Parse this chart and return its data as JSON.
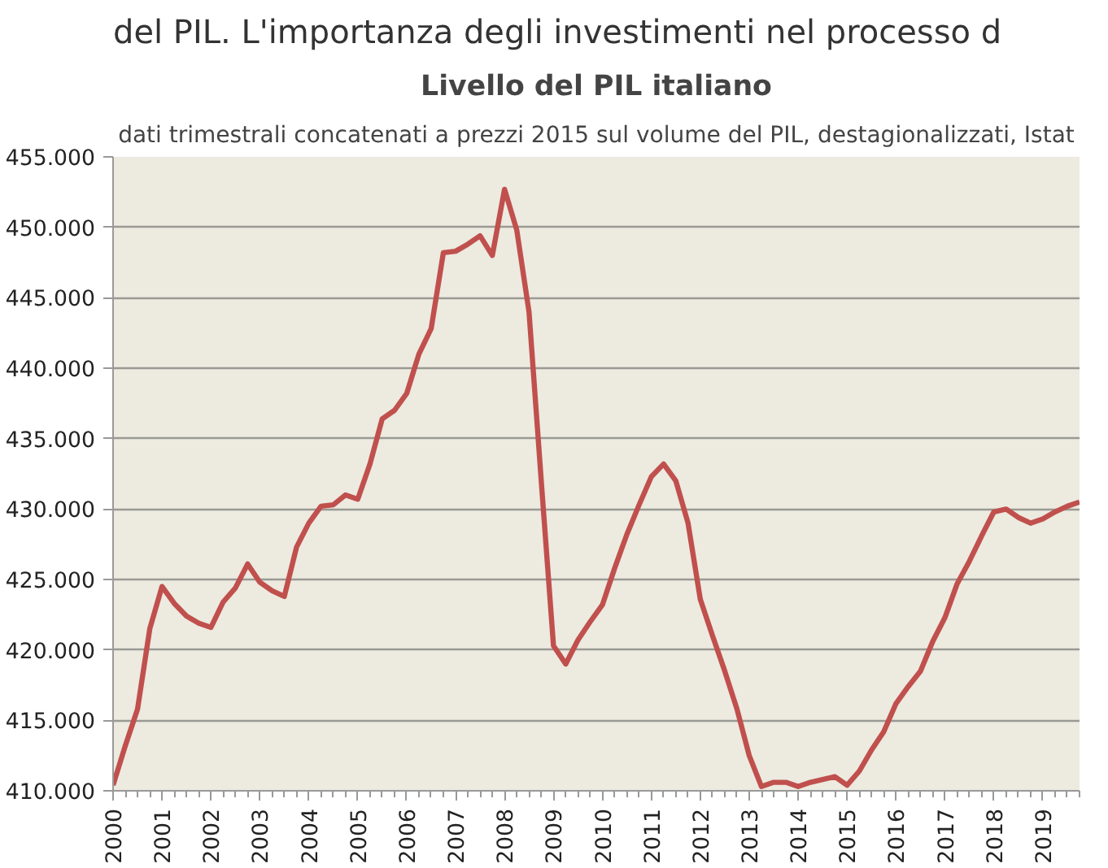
{
  "chart_data": {
    "type": "line",
    "title": "Livello del PIL italiano",
    "subtitle": "dati trimestrali concatenati a prezzi 2015 sul volume del PIL, destagionalizzati, Istat",
    "annotations": [
      "del PIL. L'importanza degli investimenti nel processo d"
    ],
    "x": [
      2000,
      2000.25,
      2000.5,
      2000.75,
      2001,
      2001.25,
      2001.5,
      2001.75,
      2002,
      2002.25,
      2002.5,
      2002.75,
      2003,
      2003.25,
      2003.5,
      2003.75,
      2004,
      2004.25,
      2004.5,
      2004.75,
      2005,
      2005.25,
      2005.5,
      2005.75,
      2006,
      2006.25,
      2006.5,
      2006.75,
      2007,
      2007.25,
      2007.5,
      2007.75,
      2008,
      2008.25,
      2008.5,
      2008.75,
      2009,
      2009.25,
      2009.5,
      2009.75,
      2010,
      2010.25,
      2010.5,
      2010.75,
      2011,
      2011.25,
      2011.5,
      2011.75,
      2012,
      2012.25,
      2012.5,
      2012.75,
      2013,
      2013.25,
      2013.5,
      2013.75,
      2014,
      2014.25,
      2014.5,
      2014.75,
      2015,
      2015.25,
      2015.5,
      2015.75,
      2016,
      2016.25,
      2016.5,
      2016.75,
      2017,
      2017.25,
      2017.5,
      2017.75,
      2018,
      2018.25,
      2018.5,
      2018.75,
      2019,
      2019.25,
      2019.5,
      2019.75
    ],
    "series": [
      {
        "color": "#c0504d",
        "values": [
          410400,
          413200,
          415800,
          421500,
          424500,
          423300,
          422400,
          421900,
          421600,
          423400,
          424400,
          426100,
          424800,
          424200,
          423800,
          427300,
          429000,
          430200,
          430300,
          431000,
          430700,
          433200,
          436400,
          437000,
          438200,
          441000,
          442800,
          448200,
          448300,
          448800,
          449400,
          448000,
          452700,
          449800,
          444000,
          432000,
          420300,
          419000,
          420700,
          422000,
          423200,
          425800,
          428200,
          430300,
          432300,
          433200,
          432000,
          429000,
          423600,
          421000,
          418500,
          415800,
          412500,
          410300,
          410600,
          410600,
          410300,
          410600,
          410800,
          411000,
          410400,
          411400,
          412900,
          414200,
          416200,
          417400,
          418500,
          420600,
          422300,
          424700,
          426300,
          428100,
          429800,
          430000,
          429400,
          429000,
          429300,
          429800,
          430200,
          430500
        ]
      }
    ],
    "xlim": [
      2000,
      2019.75
    ],
    "xticks": [
      2000,
      2001,
      2002,
      2003,
      2004,
      2005,
      2006,
      2007,
      2008,
      2009,
      2010,
      2011,
      2012,
      2013,
      2014,
      2015,
      2016,
      2017,
      2018,
      2019
    ],
    "ylim": [
      410000,
      455000
    ],
    "yticks": [
      {
        "value": 410000,
        "label": "410.000"
      },
      {
        "value": 415000,
        "label": "415.000"
      },
      {
        "value": 420000,
        "label": "420.000"
      },
      {
        "value": 425000,
        "label": "425.000"
      },
      {
        "value": 430000,
        "label": "430.000"
      },
      {
        "value": 435000,
        "label": "435.000"
      },
      {
        "value": 440000,
        "label": "440.000"
      },
      {
        "value": 445000,
        "label": "445.000"
      },
      {
        "value": 450000,
        "label": "450.000"
      },
      {
        "value": 455000,
        "label": "455.000"
      }
    ],
    "grid": "y",
    "marker": "none",
    "line_style": "solid"
  }
}
